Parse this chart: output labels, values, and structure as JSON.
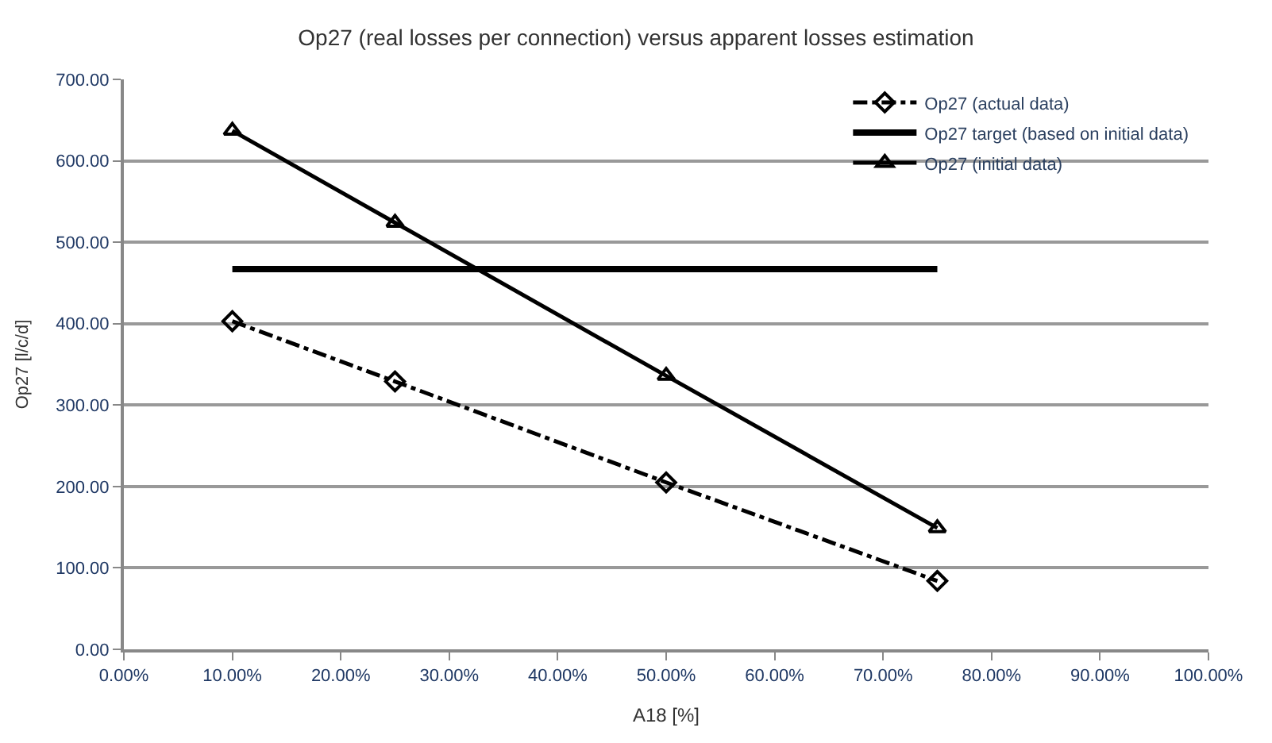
{
  "chart_data": {
    "type": "line",
    "title": "Op27 (real losses per connection) versus apparent losses estimation",
    "xlabel": "A18 [%]",
    "ylabel": "Op27 [l/c/d]",
    "xlim": [
      0,
      100
    ],
    "ylim": [
      0,
      700
    ],
    "xticks": [
      {
        "value": 0,
        "label": "0.00%"
      },
      {
        "value": 10,
        "label": "10.00%"
      },
      {
        "value": 20,
        "label": "20.00%"
      },
      {
        "value": 30,
        "label": "30.00%"
      },
      {
        "value": 40,
        "label": "40.00%"
      },
      {
        "value": 50,
        "label": "50.00%"
      },
      {
        "value": 60,
        "label": "60.00%"
      },
      {
        "value": 70,
        "label": "70.00%"
      },
      {
        "value": 80,
        "label": "80.00%"
      },
      {
        "value": 90,
        "label": "90.00%"
      },
      {
        "value": 100,
        "label": "100.00%"
      }
    ],
    "yticks": [
      {
        "value": 0,
        "label": "0.00"
      },
      {
        "value": 100,
        "label": "100.00"
      },
      {
        "value": 200,
        "label": "200.00"
      },
      {
        "value": 300,
        "label": "300.00"
      },
      {
        "value": 400,
        "label": "400.00"
      },
      {
        "value": 500,
        "label": "500.00"
      },
      {
        "value": 600,
        "label": "600.00"
      },
      {
        "value": 700,
        "label": "700.00"
      }
    ],
    "grid": "y",
    "legend": "top right",
    "series": [
      {
        "name": "Op27 (actual data)",
        "color": "#000000",
        "x": [
          10,
          25,
          50,
          75
        ],
        "values": [
          403,
          329,
          205,
          84
        ],
        "marker": "diamond",
        "line_style": "dashed"
      },
      {
        "name": "Op27 target (based on initial data)",
        "color": "#000000",
        "x": [
          10,
          75
        ],
        "values": [
          467,
          467
        ],
        "marker": "none",
        "line_style": "solid"
      },
      {
        "name": "Op27 (initial data)",
        "color": "#000000",
        "x": [
          10,
          25,
          50,
          75
        ],
        "values": [
          637,
          524,
          336,
          149
        ],
        "marker": "triangle",
        "line_style": "solid"
      }
    ]
  }
}
